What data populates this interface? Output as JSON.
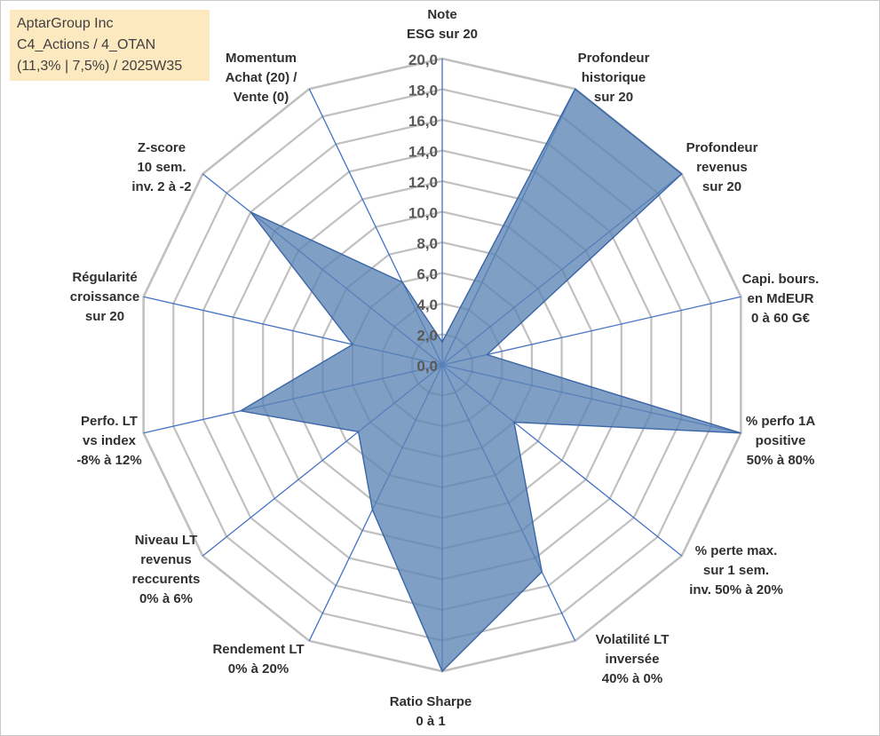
{
  "title_box": {
    "line1": "AptarGroup Inc",
    "line2": "C4_Actions / 4_OTAN",
    "line3": "(11,3% | 7,5%) / 2025W35"
  },
  "chart_data": {
    "type": "radar",
    "title": "",
    "ylim": [
      0,
      20
    ],
    "tick_labels": [
      "0,0",
      "2,0",
      "4,0",
      "6,0",
      "8,0",
      "10,0",
      "12,0",
      "14,0",
      "16,0",
      "18,0",
      "20,0"
    ],
    "grid": true,
    "legend": "none",
    "axes": [
      [
        "Note",
        "ESG sur 20"
      ],
      [
        "Profondeur",
        "historique",
        "sur 20"
      ],
      [
        "Profondeur",
        "revenus",
        "sur 20"
      ],
      [
        "Capi. bours.",
        "en MdEUR",
        "0 à 60 G€"
      ],
      [
        "% perfo 1A",
        "positive",
        "50% à 80%"
      ],
      [
        "% perte max.",
        "sur 1 sem.",
        "inv. 50% à 20%"
      ],
      [
        "Volatilité LT",
        "inversée",
        "40% à 0%"
      ],
      [
        "Ratio Sharpe",
        "0 à 1"
      ],
      [
        "Rendement LT",
        "0% à 20%"
      ],
      [
        "Niveau LT",
        "revenus",
        "reccurents",
        "0% à 6%"
      ],
      [
        "Perfo. LT",
        "vs index",
        "-8% à 12%"
      ],
      [
        "Régularité",
        "croissance",
        "sur 20"
      ],
      [
        "Z-score",
        "10 sem.",
        "inv. 2 à -2"
      ],
      [
        "Momentum",
        "Achat (20) /",
        "Vente (0)"
      ]
    ],
    "series": [
      {
        "values": [
          1.5,
          20.0,
          20.0,
          3.0,
          20.0,
          6.0,
          15.0,
          20.0,
          10.5,
          7.0,
          13.5,
          6.0,
          16.0,
          6.0
        ],
        "color": "#5b84b5",
        "fill_opacity": 0.78,
        "stroke": "#3a65a6"
      }
    ],
    "grid_color": "#c0c0c0",
    "spoke_color": "#4472c4"
  }
}
